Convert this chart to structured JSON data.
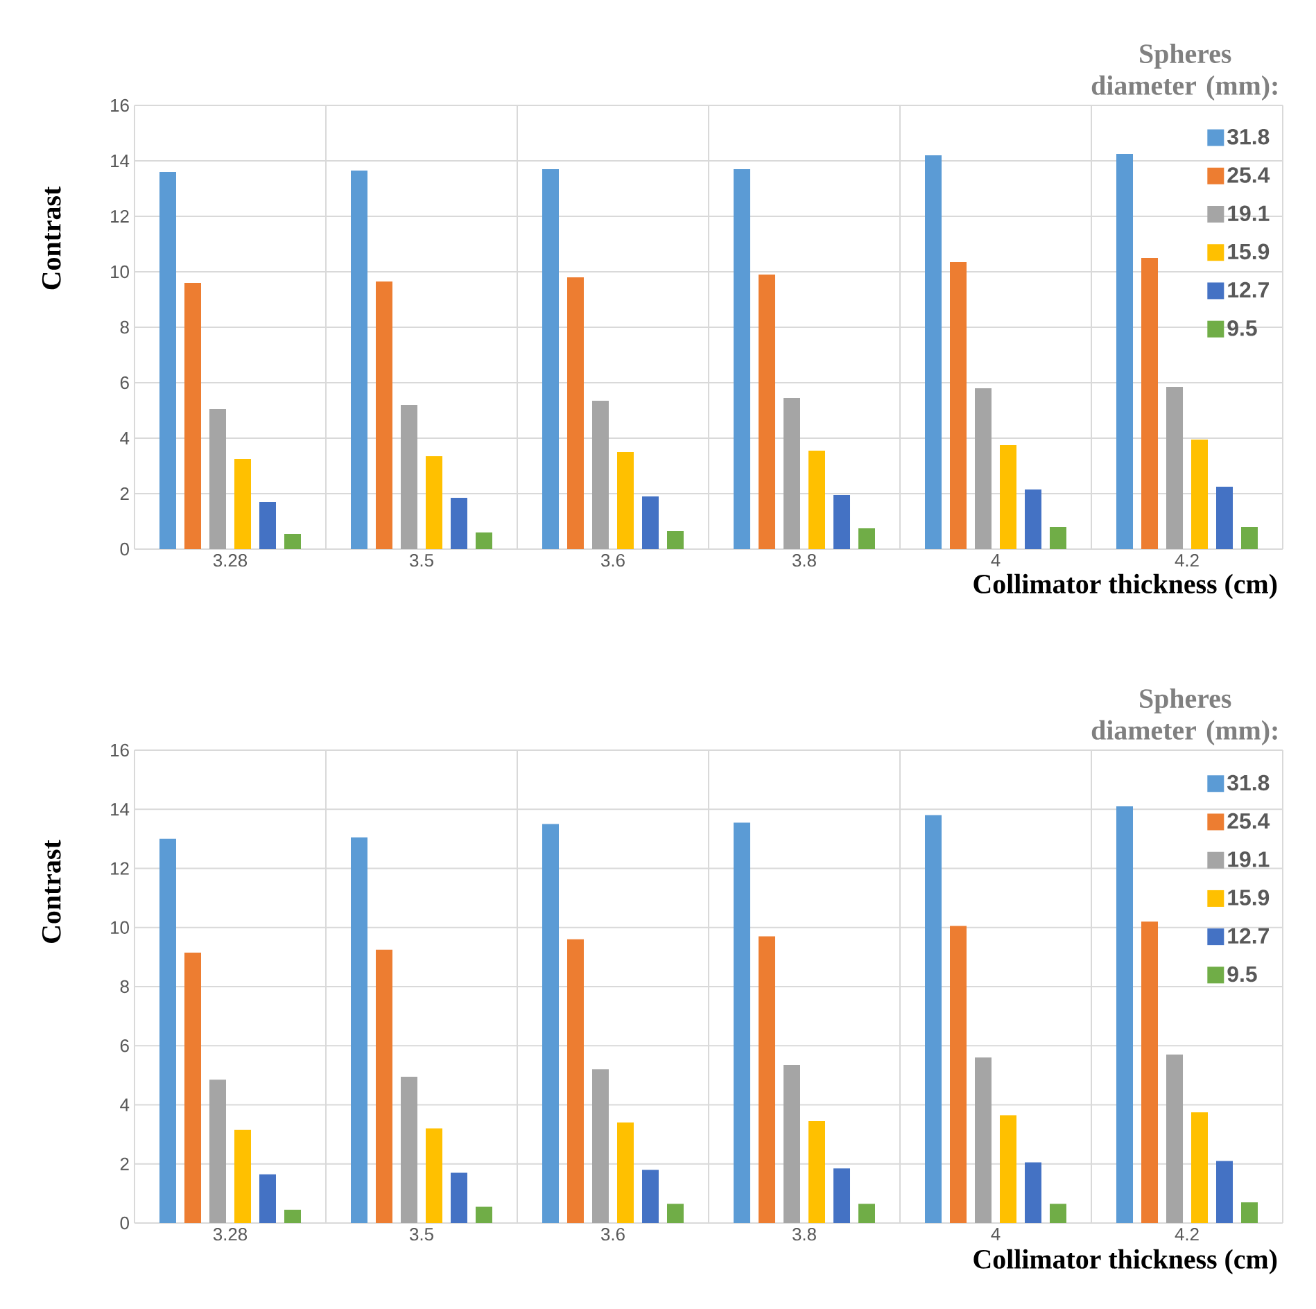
{
  "chart_data": [
    {
      "type": "bar",
      "xlabel": "Collimator thickness (cm)",
      "ylabel": "Contrast",
      "legend_title": "Spheres diameter (mm):",
      "categories": [
        "3.28",
        "3.5",
        "3.6",
        "3.8",
        "4",
        "4.2"
      ],
      "ylim": [
        0,
        16
      ],
      "yticks": [
        0,
        2,
        4,
        6,
        8,
        10,
        12,
        14,
        16
      ],
      "grid": true,
      "legend": "top right",
      "series": [
        {
          "name": "31.8",
          "color": "#5b9bd5",
          "values": [
            13.6,
            13.65,
            13.7,
            13.7,
            14.2,
            14.25
          ]
        },
        {
          "name": "25.4",
          "color": "#ed7d31",
          "values": [
            9.6,
            9.65,
            9.8,
            9.9,
            10.35,
            10.5
          ]
        },
        {
          "name": "19.1",
          "color": "#a5a5a5",
          "values": [
            5.05,
            5.2,
            5.35,
            5.45,
            5.8,
            5.85
          ]
        },
        {
          "name": "15.9",
          "color": "#ffc000",
          "values": [
            3.25,
            3.35,
            3.5,
            3.55,
            3.75,
            3.95
          ]
        },
        {
          "name": "12.7",
          "color": "#4472c4",
          "values": [
            1.7,
            1.85,
            1.9,
            1.95,
            2.15,
            2.25
          ]
        },
        {
          "name": "9.5",
          "color": "#70ad47",
          "values": [
            0.55,
            0.6,
            0.65,
            0.75,
            0.8,
            0.8
          ]
        }
      ]
    },
    {
      "type": "bar",
      "xlabel": "Collimator thickness (cm)",
      "ylabel": "Contrast",
      "legend_title": "Spheres diameter (mm):",
      "categories": [
        "3.28",
        "3.5",
        "3.6",
        "3.8",
        "4",
        "4.2"
      ],
      "ylim": [
        0,
        16
      ],
      "yticks": [
        0,
        2,
        4,
        6,
        8,
        10,
        12,
        14,
        16
      ],
      "grid": true,
      "legend": "top right",
      "series": [
        {
          "name": "31.8",
          "color": "#5b9bd5",
          "values": [
            13.0,
            13.05,
            13.5,
            13.55,
            13.8,
            14.1
          ]
        },
        {
          "name": "25.4",
          "color": "#ed7d31",
          "values": [
            9.15,
            9.25,
            9.6,
            9.7,
            10.05,
            10.2
          ]
        },
        {
          "name": "19.1",
          "color": "#a5a5a5",
          "values": [
            4.85,
            4.95,
            5.2,
            5.35,
            5.6,
            5.7
          ]
        },
        {
          "name": "15.9",
          "color": "#ffc000",
          "values": [
            3.15,
            3.2,
            3.4,
            3.45,
            3.65,
            3.75
          ]
        },
        {
          "name": "12.7",
          "color": "#4472c4",
          "values": [
            1.65,
            1.7,
            1.8,
            1.85,
            2.05,
            2.1
          ]
        },
        {
          "name": "9.5",
          "color": "#70ad47",
          "values": [
            0.45,
            0.55,
            0.65,
            0.65,
            0.65,
            0.7
          ]
        }
      ]
    }
  ]
}
